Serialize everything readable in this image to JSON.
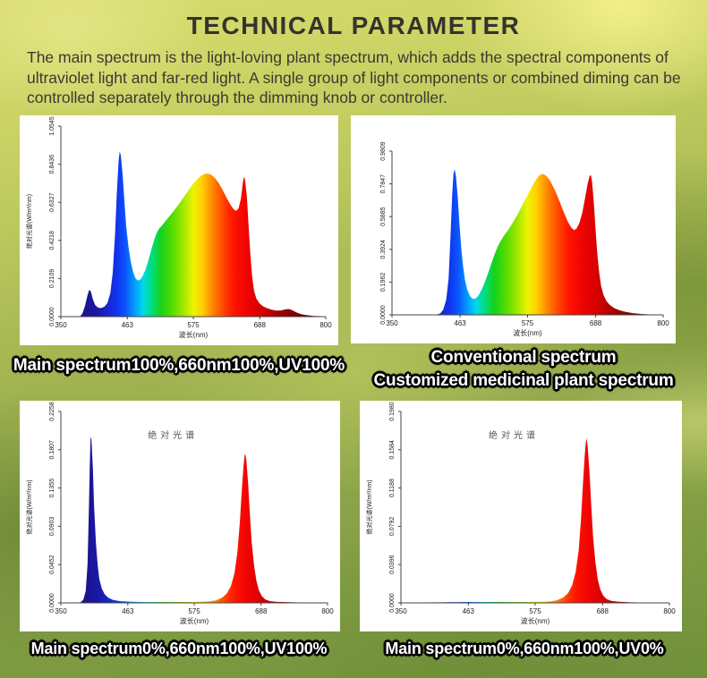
{
  "page": {
    "title": "TECHNICAL PARAMETER",
    "description": "The main spectrum is the light-loving plant spectrum, which adds the spectral components of ultraviolet light and far-red light. A single group of light components or combined diming can be controlled separately through the dimming knob or controller."
  },
  "style_colors": {
    "panel_background": "#ffffff",
    "caption_text": "#ffffff",
    "caption_outline": "#000000",
    "body_text": "#3a3a31",
    "background_yellow_green": "#d9dc70",
    "background_deep_green": "#70903c"
  },
  "spectrum_gradient": [
    {
      "at": 350,
      "color": "#140d63"
    },
    {
      "at": 415,
      "color": "#1d18a8"
    },
    {
      "at": 445,
      "color": "#1133ee"
    },
    {
      "at": 460,
      "color": "#0b56ff"
    },
    {
      "at": 478,
      "color": "#00a8ff"
    },
    {
      "at": 490,
      "color": "#00d9e8"
    },
    {
      "at": 505,
      "color": "#00dd7a"
    },
    {
      "at": 520,
      "color": "#17d21c"
    },
    {
      "at": 540,
      "color": "#57dd00"
    },
    {
      "at": 560,
      "color": "#aae800"
    },
    {
      "at": 575,
      "color": "#eef400"
    },
    {
      "at": 590,
      "color": "#ffcf00"
    },
    {
      "at": 600,
      "color": "#ffa400"
    },
    {
      "at": 615,
      "color": "#ff6c00"
    },
    {
      "at": 630,
      "color": "#ff3a00"
    },
    {
      "at": 645,
      "color": "#ff1200"
    },
    {
      "at": 665,
      "color": "#ef0404"
    },
    {
      "at": 690,
      "color": "#d60000"
    },
    {
      "at": 720,
      "color": "#a30000"
    },
    {
      "at": 750,
      "color": "#7c0000"
    },
    {
      "at": 800,
      "color": "#570000"
    }
  ],
  "chart_data": [
    {
      "id": "main-spectrum-full",
      "type": "area",
      "inner_title": "",
      "caption_lines": [
        "Main spectrum100%,660nm100%,UV100%"
      ],
      "xlabel": "波长(nm)",
      "ylabel": "绝对光谱(W/m²/nm)",
      "xlim": [
        350,
        800
      ],
      "xticks": [
        350,
        463,
        575,
        688,
        800
      ],
      "ylim": [
        0,
        1.0545
      ],
      "yticks": [
        "0.0000",
        "0.2109",
        "0.4218",
        "0.6327",
        "0.8436",
        "1.0545"
      ],
      "grid": false,
      "points": [
        [
          383,
          0.001
        ],
        [
          387,
          0.02
        ],
        [
          391,
          0.06
        ],
        [
          395,
          0.115
        ],
        [
          398,
          0.148
        ],
        [
          401,
          0.14
        ],
        [
          404,
          0.1
        ],
        [
          408,
          0.065
        ],
        [
          413,
          0.05
        ],
        [
          418,
          0.047
        ],
        [
          424,
          0.055
        ],
        [
          429,
          0.075
        ],
        [
          434,
          0.13
        ],
        [
          438,
          0.24
        ],
        [
          442,
          0.45
        ],
        [
          445,
          0.68
        ],
        [
          448,
          0.86
        ],
        [
          450,
          0.915
        ],
        [
          452,
          0.89
        ],
        [
          455,
          0.78
        ],
        [
          458,
          0.64
        ],
        [
          461,
          0.5
        ],
        [
          465,
          0.385
        ],
        [
          469,
          0.3
        ],
        [
          473,
          0.245
        ],
        [
          477,
          0.212
        ],
        [
          481,
          0.2
        ],
        [
          485,
          0.205
        ],
        [
          489,
          0.225
        ],
        [
          494,
          0.262
        ],
        [
          499,
          0.315
        ],
        [
          504,
          0.375
        ],
        [
          509,
          0.43
        ],
        [
          513,
          0.465
        ],
        [
          517,
          0.487
        ],
        [
          522,
          0.505
        ],
        [
          528,
          0.53
        ],
        [
          535,
          0.558
        ],
        [
          543,
          0.59
        ],
        [
          551,
          0.625
        ],
        [
          559,
          0.662
        ],
        [
          567,
          0.7
        ],
        [
          575,
          0.737
        ],
        [
          583,
          0.765
        ],
        [
          590,
          0.783
        ],
        [
          597,
          0.792
        ],
        [
          604,
          0.788
        ],
        [
          611,
          0.77
        ],
        [
          618,
          0.74
        ],
        [
          625,
          0.7
        ],
        [
          632,
          0.655
        ],
        [
          639,
          0.615
        ],
        [
          644,
          0.592
        ],
        [
          648,
          0.585
        ],
        [
          652,
          0.6
        ],
        [
          656,
          0.655
        ],
        [
          659,
          0.74
        ],
        [
          661,
          0.775
        ],
        [
          663,
          0.755
        ],
        [
          666,
          0.66
        ],
        [
          669,
          0.5
        ],
        [
          672,
          0.34
        ],
        [
          675,
          0.22
        ],
        [
          678,
          0.145
        ],
        [
          682,
          0.1
        ],
        [
          687,
          0.075
        ],
        [
          693,
          0.058
        ],
        [
          700,
          0.047
        ],
        [
          708,
          0.038
        ],
        [
          716,
          0.033
        ],
        [
          724,
          0.034
        ],
        [
          731,
          0.04
        ],
        [
          737,
          0.042
        ],
        [
          743,
          0.036
        ],
        [
          750,
          0.024
        ],
        [
          758,
          0.014
        ],
        [
          768,
          0.008
        ],
        [
          780,
          0.004
        ],
        [
          800,
          0.002
        ]
      ]
    },
    {
      "id": "conventional-spectrum",
      "type": "area",
      "inner_title": "",
      "caption_lines": [
        "Conventional spectrum",
        "Customized medicinal plant  spectrum"
      ],
      "xlabel": "波长(nm)",
      "ylabel": "",
      "xlim": [
        350,
        800
      ],
      "xticks": [
        350,
        463,
        575,
        688,
        800
      ],
      "ylim": [
        0,
        0.9809
      ],
      "yticks": [
        "0.0000",
        "0.1962",
        "0.3924",
        "0.5885",
        "0.7847",
        "0.9809"
      ],
      "grid": false,
      "points": [
        [
          424,
          0.001
        ],
        [
          430,
          0.008
        ],
        [
          435,
          0.03
        ],
        [
          440,
          0.09
        ],
        [
          444,
          0.22
        ],
        [
          447,
          0.46
        ],
        [
          450,
          0.72
        ],
        [
          452,
          0.845
        ],
        [
          454,
          0.872
        ],
        [
          456,
          0.835
        ],
        [
          459,
          0.71
        ],
        [
          462,
          0.545
        ],
        [
          465,
          0.4
        ],
        [
          468,
          0.29
        ],
        [
          471,
          0.21
        ],
        [
          475,
          0.15
        ],
        [
          479,
          0.115
        ],
        [
          483,
          0.098
        ],
        [
          487,
          0.095
        ],
        [
          491,
          0.105
        ],
        [
          495,
          0.125
        ],
        [
          500,
          0.16
        ],
        [
          505,
          0.205
        ],
        [
          510,
          0.255
        ],
        [
          515,
          0.31
        ],
        [
          520,
          0.36
        ],
        [
          525,
          0.405
        ],
        [
          530,
          0.44
        ],
        [
          536,
          0.475
        ],
        [
          543,
          0.51
        ],
        [
          550,
          0.55
        ],
        [
          558,
          0.6
        ],
        [
          566,
          0.655
        ],
        [
          574,
          0.71
        ],
        [
          582,
          0.765
        ],
        [
          589,
          0.81
        ],
        [
          595,
          0.838
        ],
        [
          601,
          0.845
        ],
        [
          607,
          0.83
        ],
        [
          613,
          0.8
        ],
        [
          620,
          0.75
        ],
        [
          627,
          0.69
        ],
        [
          634,
          0.625
        ],
        [
          641,
          0.565
        ],
        [
          647,
          0.525
        ],
        [
          652,
          0.508
        ],
        [
          656,
          0.515
        ],
        [
          661,
          0.55
        ],
        [
          666,
          0.615
        ],
        [
          671,
          0.71
        ],
        [
          675,
          0.79
        ],
        [
          678,
          0.833
        ],
        [
          680,
          0.838
        ],
        [
          682,
          0.8
        ],
        [
          685,
          0.67
        ],
        [
          688,
          0.5
        ],
        [
          691,
          0.355
        ],
        [
          694,
          0.25
        ],
        [
          697,
          0.175
        ],
        [
          701,
          0.12
        ],
        [
          706,
          0.082
        ],
        [
          712,
          0.058
        ],
        [
          719,
          0.04
        ],
        [
          727,
          0.028
        ],
        [
          737,
          0.018
        ],
        [
          750,
          0.01
        ],
        [
          765,
          0.005
        ],
        [
          782,
          0.002
        ],
        [
          800,
          0.001
        ]
      ]
    },
    {
      "id": "uv-plus-660",
      "type": "area",
      "inner_title": "绝对光谱",
      "caption_lines": [
        "Main spectrum0%,660nm100%,UV100%"
      ],
      "xlabel": "波长(nm)",
      "ylabel": "绝对光谱(W/m²/nm)",
      "xlim": [
        350,
        800
      ],
      "xticks": [
        350,
        463,
        575,
        688,
        800
      ],
      "ylim": [
        0,
        0.2258
      ],
      "yticks": [
        "0.0000",
        "0.0452",
        "0.0903",
        "0.1355",
        "0.1807",
        "0.2258"
      ],
      "grid": false,
      "points": [
        [
          378,
          0.0003
        ],
        [
          384,
          0.001
        ],
        [
          388,
          0.004
        ],
        [
          392,
          0.014
        ],
        [
          395,
          0.045
        ],
        [
          397,
          0.1
        ],
        [
          399,
          0.165
        ],
        [
          400,
          0.193
        ],
        [
          401,
          0.196
        ],
        [
          402,
          0.188
        ],
        [
          404,
          0.158
        ],
        [
          406,
          0.115
        ],
        [
          409,
          0.072
        ],
        [
          412,
          0.045
        ],
        [
          415,
          0.028
        ],
        [
          419,
          0.017
        ],
        [
          424,
          0.01
        ],
        [
          430,
          0.006
        ],
        [
          438,
          0.0035
        ],
        [
          450,
          0.002
        ],
        [
          470,
          0.0013
        ],
        [
          500,
          0.001
        ],
        [
          540,
          0.001
        ],
        [
          575,
          0.0012
        ],
        [
          600,
          0.0018
        ],
        [
          612,
          0.003
        ],
        [
          622,
          0.006
        ],
        [
          630,
          0.011
        ],
        [
          637,
          0.02
        ],
        [
          643,
          0.035
        ],
        [
          648,
          0.06
        ],
        [
          652,
          0.095
        ],
        [
          655,
          0.13
        ],
        [
          658,
          0.16
        ],
        [
          660,
          0.174
        ],
        [
          661,
          0.176
        ],
        [
          663,
          0.168
        ],
        [
          666,
          0.14
        ],
        [
          669,
          0.105
        ],
        [
          672,
          0.072
        ],
        [
          676,
          0.044
        ],
        [
          680,
          0.026
        ],
        [
          684,
          0.015
        ],
        [
          689,
          0.008
        ],
        [
          695,
          0.004
        ],
        [
          703,
          0.002
        ],
        [
          715,
          0.0012
        ],
        [
          735,
          0.0007
        ],
        [
          760,
          0.0004
        ],
        [
          800,
          0.0002
        ]
      ]
    },
    {
      "id": "red-660-only",
      "type": "area",
      "inner_title": "绝对光谱",
      "caption_lines": [
        "Main spectrum0%,660nm100%,UV0%"
      ],
      "xlabel": "波长(nm)",
      "ylabel": "绝对光谱(W/m²/nm)",
      "xlim": [
        350,
        800
      ],
      "xticks": [
        350,
        463,
        575,
        688,
        800
      ],
      "ylim": [
        0,
        0.198
      ],
      "yticks": [
        "0.0000",
        "0.0396",
        "0.0792",
        "0.1188",
        "0.1584",
        "0.1980"
      ],
      "grid": false,
      "points": [
        [
          350,
          0.0004
        ],
        [
          420,
          0.0006
        ],
        [
          460,
          0.0009
        ],
        [
          500,
          0.0009
        ],
        [
          540,
          0.0008
        ],
        [
          575,
          0.001
        ],
        [
          600,
          0.0015
        ],
        [
          612,
          0.0028
        ],
        [
          622,
          0.0055
        ],
        [
          630,
          0.01
        ],
        [
          637,
          0.018
        ],
        [
          643,
          0.032
        ],
        [
          648,
          0.055
        ],
        [
          652,
          0.088
        ],
        [
          655,
          0.122
        ],
        [
          658,
          0.152
        ],
        [
          660,
          0.167
        ],
        [
          661,
          0.17
        ],
        [
          663,
          0.162
        ],
        [
          666,
          0.135
        ],
        [
          669,
          0.1
        ],
        [
          672,
          0.068
        ],
        [
          676,
          0.042
        ],
        [
          680,
          0.024
        ],
        [
          684,
          0.014
        ],
        [
          689,
          0.0075
        ],
        [
          695,
          0.0038
        ],
        [
          703,
          0.0019
        ],
        [
          715,
          0.0011
        ],
        [
          735,
          0.0006
        ],
        [
          760,
          0.0004
        ],
        [
          800,
          0.0002
        ]
      ]
    }
  ]
}
